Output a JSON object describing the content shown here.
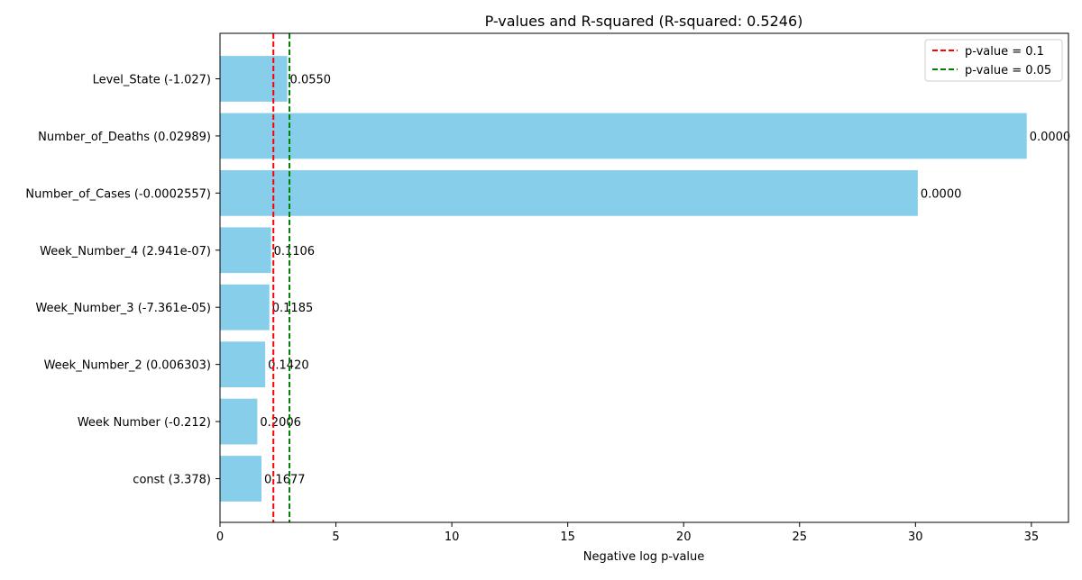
{
  "chart_data": {
    "type": "bar",
    "orientation": "horizontal",
    "title": "P-values and R-squared (R-squared: 0.5246)",
    "xlabel": "Negative log p-value",
    "ylabel": "",
    "xlim": [
      0,
      36.6
    ],
    "x_ticks": [
      0,
      5,
      10,
      15,
      20,
      25,
      30,
      35
    ],
    "categories": [
      "const (3.378)",
      "Week Number (-0.212)",
      "Week_Number_2 (0.006303)",
      "Week_Number_3 (-7.361e-05)",
      "Week_Number_4 (2.941e-07)",
      "Number_of_Cases (-0.0002557)",
      "Number_of_Deaths (0.02989)",
      "Level_State (-1.027)"
    ],
    "values": [
      1.79,
      1.61,
      1.95,
      2.13,
      2.2,
      30.1,
      34.8,
      2.9
    ],
    "bar_labels": [
      "0.1677",
      "0.2006",
      "0.1420",
      "0.1185",
      "0.1106",
      "0.0000",
      "0.0000",
      "0.0550"
    ],
    "bar_color": "#87ceeb",
    "reference_lines": [
      {
        "name": "p-value = 0.1",
        "x": 2.303,
        "color": "#ff0000",
        "style": "dashed"
      },
      {
        "name": "p-value = 0.05",
        "x": 2.996,
        "color": "#008000",
        "style": "dashed"
      }
    ],
    "legend_position": "top-right",
    "grid": false
  }
}
